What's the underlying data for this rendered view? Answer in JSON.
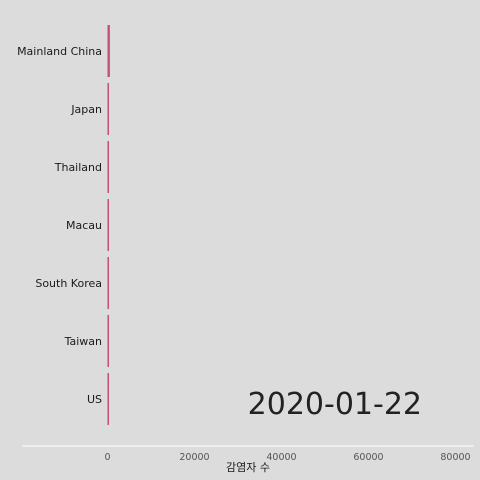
{
  "chart_data": {
    "type": "bar",
    "orientation": "horizontal",
    "categories": [
      "Mainland China",
      "Japan",
      "Thailand",
      "Macau",
      "South Korea",
      "Taiwan",
      "US"
    ],
    "series": [
      {
        "values": [
          547,
          2,
          4,
          1,
          1,
          1,
          1
        ]
      }
    ],
    "xlabel": "감염자 수",
    "ylabel": "",
    "xlim": [
      -20000,
      85000
    ],
    "xticks": [
      "0",
      "20000",
      "40000",
      "60000",
      "80000"
    ],
    "xtick_values": [
      0,
      20000,
      40000,
      60000,
      80000
    ],
    "annotation": "2020-01-22",
    "grid": false,
    "colors": {
      "bar": "#c2507a",
      "background": "#dcdcdc",
      "axis_line": "#ffffff"
    }
  }
}
